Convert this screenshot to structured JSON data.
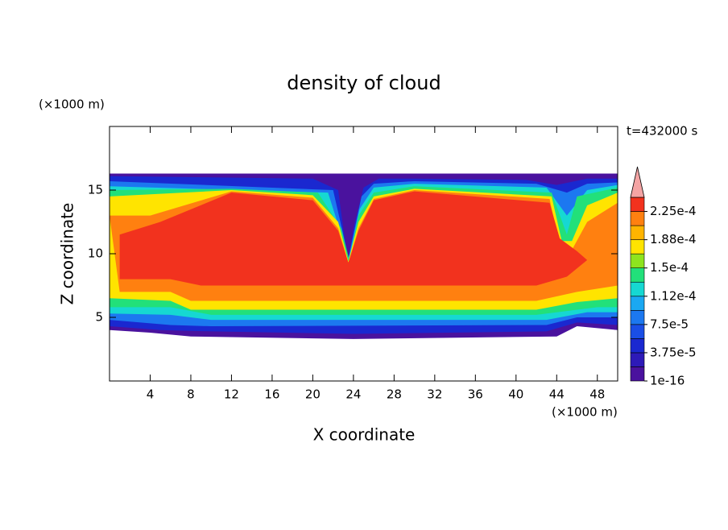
{
  "chart_data": {
    "type": "contour",
    "title": "density of cloud",
    "xlabel": "X coordinate",
    "ylabel": "Z coordinate",
    "x_unit": "(×1000 m)",
    "y_unit": "(×1000 m)",
    "time_label": "t=432000 s",
    "xlim": [
      0,
      50
    ],
    "ylim": [
      0,
      20
    ],
    "xticks": [
      4,
      8,
      12,
      16,
      20,
      24,
      28,
      32,
      36,
      40,
      44,
      48
    ],
    "yticks": [
      5,
      10,
      15
    ],
    "colorbar": {
      "levels": [
        1e-16,
        1.875e-05,
        3.75e-05,
        5.625e-05,
        7.5e-05,
        9.375e-05,
        0.0001125,
        0.00013125,
        0.00015,
        0.00016875,
        0.0001875,
        0.00020625,
        0.000225,
        0.00024375
      ],
      "colors": [
        "#4a129e",
        "#2d1ab8",
        "#1a28d0",
        "#1a4ee6",
        "#1c78f0",
        "#1aa8f2",
        "#16d8d2",
        "#22e07a",
        "#8ee41e",
        "#ffe400",
        "#ffb400",
        "#ff8010",
        "#f2321e"
      ],
      "extend_color": "#f4a4a4",
      "ticks": [
        {
          "value": 1e-16,
          "label": "1e-16"
        },
        {
          "value": 3.75e-05,
          "label": "3.75e-5"
        },
        {
          "value": 7.5e-05,
          "label": "7.5e-5"
        },
        {
          "value": 0.0001125,
          "label": "1.12e-4"
        },
        {
          "value": 0.00015,
          "label": "1.5e-4"
        },
        {
          "value": 0.0001875,
          "label": "1.88e-4"
        },
        {
          "value": 0.000225,
          "label": "2.25e-4"
        }
      ]
    }
  }
}
